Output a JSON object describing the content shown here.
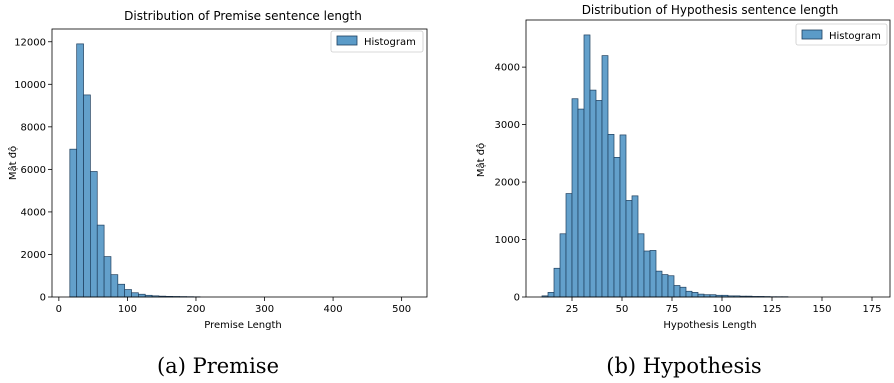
{
  "chart_data": [
    {
      "type": "bar",
      "title": "Distribution of Premise sentence length",
      "xlabel": "Premise Length",
      "ylabel": "Mật độ",
      "legend": {
        "label": "Histogram",
        "placement": "top-right"
      },
      "bar_color": "#5b9bc8",
      "edge_color": "#1f3f5e",
      "xlim": [
        -10,
        537
      ],
      "ylim": [
        0,
        12600
      ],
      "xticks": [
        0,
        100,
        200,
        300,
        400,
        500
      ],
      "yticks": [
        0,
        2000,
        4000,
        6000,
        8000,
        10000,
        12000
      ],
      "bin_edges": [
        16,
        26,
        36,
        46,
        56,
        66,
        76,
        86,
        96,
        106,
        116,
        126,
        136,
        146,
        156,
        166,
        176,
        186,
        196,
        206
      ],
      "values": [
        6950,
        11900,
        9500,
        5900,
        3380,
        1900,
        1050,
        600,
        350,
        200,
        130,
        80,
        55,
        40,
        30,
        25,
        20,
        15,
        10
      ],
      "grid": false,
      "caption": "(a) Premise"
    },
    {
      "type": "bar",
      "title": "Distribution of Hypothesis sentence length",
      "xlabel": "Hypothesis Length",
      "ylabel": "Mật độ",
      "legend": {
        "label": "Histogram",
        "placement": "top-right"
      },
      "bar_color": "#5b9bc8",
      "edge_color": "#1f3f5e",
      "xlim": [
        2,
        184
      ],
      "ylim": [
        0,
        4820
      ],
      "xticks": [
        25,
        50,
        75,
        100,
        125,
        150,
        175
      ],
      "yticks": [
        0,
        1000,
        2000,
        3000,
        4000
      ],
      "bin_edges": [
        10,
        13,
        16,
        19,
        22,
        25,
        28,
        31,
        34,
        37,
        40,
        43,
        46,
        49,
        52,
        55,
        58,
        61,
        64,
        67,
        70,
        73,
        76,
        79,
        82,
        85,
        88,
        91,
        94,
        97,
        100,
        103,
        106,
        109,
        112,
        115,
        118,
        121,
        124,
        127,
        130,
        133
      ],
      "values": [
        20,
        80,
        500,
        1100,
        1800,
        3450,
        3270,
        4560,
        3600,
        3420,
        4200,
        2830,
        2430,
        2820,
        1680,
        1760,
        1100,
        800,
        810,
        450,
        390,
        370,
        200,
        170,
        100,
        80,
        50,
        40,
        40,
        30,
        30,
        20,
        20,
        15,
        15,
        10,
        10,
        8,
        5,
        5,
        5
      ],
      "grid": false,
      "caption": "(b) Hypothesis"
    }
  ]
}
